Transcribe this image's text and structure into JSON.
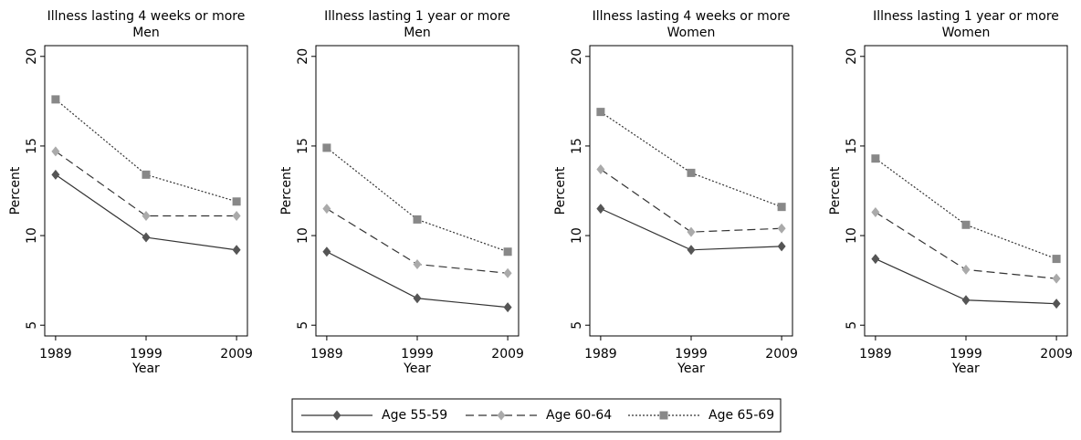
{
  "legend": [
    {
      "name": "Age 55-59",
      "color": "#555555",
      "dash": "solid",
      "marker": "diamond"
    },
    {
      "name": "Age 60-64",
      "color": "#aaaaaa",
      "dash": "dashed",
      "marker": "diamond"
    },
    {
      "name": "Age 65-69",
      "color": "#888888",
      "dash": "dotted",
      "marker": "square"
    }
  ],
  "chart_data": [
    {
      "type": "line",
      "title": "Illness lasting 4 weeks or more",
      "subtitle": "Men",
      "xlabel": "Year",
      "ylabel": "Percent",
      "x": [
        1989,
        1999,
        2009
      ],
      "xlim": [
        1987.8,
        2010.2
      ],
      "xticks": [
        1989,
        1999,
        2009
      ],
      "ylim": [
        4.4,
        20.6
      ],
      "yticks": [
        5,
        10,
        15,
        20
      ],
      "series": [
        {
          "values": [
            13.4,
            9.9,
            9.2
          ]
        },
        {
          "values": [
            14.7,
            11.1,
            11.1
          ]
        },
        {
          "values": [
            17.6,
            13.4,
            11.9
          ]
        }
      ]
    },
    {
      "type": "line",
      "title": "Illness lasting 1 year or more",
      "subtitle": "Men",
      "xlabel": "Year",
      "ylabel": "Percent",
      "x": [
        1989,
        1999,
        2009
      ],
      "xlim": [
        1987.8,
        2010.2
      ],
      "xticks": [
        1989,
        1999,
        2009
      ],
      "ylim": [
        4.4,
        20.6
      ],
      "yticks": [
        5,
        10,
        15,
        20
      ],
      "series": [
        {
          "values": [
            9.1,
            6.5,
            6.0
          ]
        },
        {
          "values": [
            11.5,
            8.4,
            7.9
          ]
        },
        {
          "values": [
            14.9,
            10.9,
            9.1
          ]
        }
      ]
    },
    {
      "type": "line",
      "title": "Illness lasting 4 weeks or more",
      "subtitle": "Women",
      "xlabel": "Year",
      "ylabel": "Percent",
      "x": [
        1989,
        1999,
        2009
      ],
      "xlim": [
        1987.8,
        2010.2
      ],
      "xticks": [
        1989,
        1999,
        2009
      ],
      "ylim": [
        4.4,
        20.6
      ],
      "yticks": [
        5,
        10,
        15,
        20
      ],
      "series": [
        {
          "values": [
            11.5,
            9.2,
            9.4
          ]
        },
        {
          "values": [
            13.7,
            10.2,
            10.4
          ]
        },
        {
          "values": [
            16.9,
            13.5,
            11.6
          ]
        }
      ]
    },
    {
      "type": "line",
      "title": "Illness lasting 1 year or more",
      "subtitle": "Women",
      "xlabel": "Year",
      "ylabel": "Percent",
      "x": [
        1989,
        1999,
        2009
      ],
      "xlim": [
        1987.8,
        2010.2
      ],
      "xticks": [
        1989,
        1999,
        2009
      ],
      "ylim": [
        4.4,
        20.6
      ],
      "yticks": [
        5,
        10,
        15,
        20
      ],
      "series": [
        {
          "values": [
            8.7,
            6.4,
            6.2
          ]
        },
        {
          "values": [
            11.3,
            8.1,
            7.6
          ]
        },
        {
          "values": [
            14.3,
            10.6,
            8.7
          ]
        }
      ]
    }
  ]
}
